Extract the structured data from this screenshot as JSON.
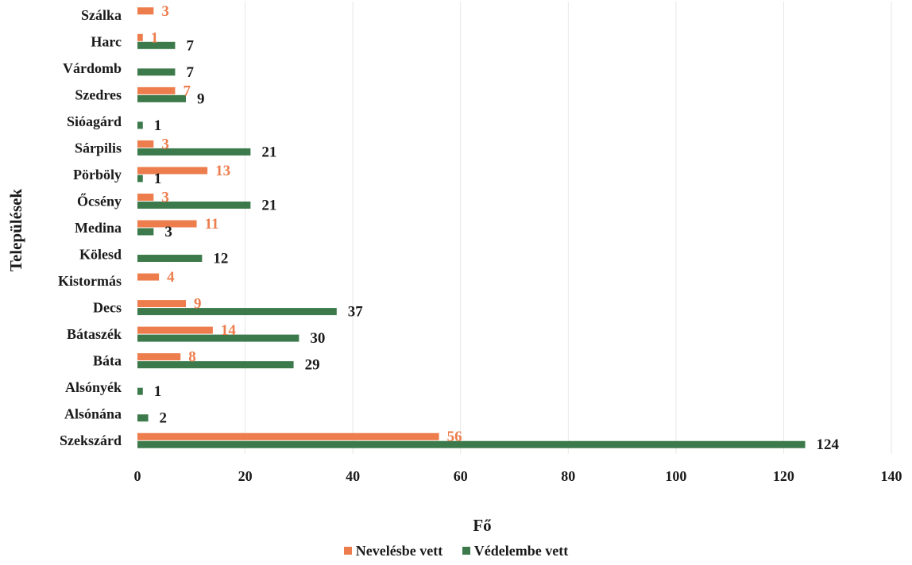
{
  "chart_data": {
    "type": "bar",
    "orientation": "horizontal",
    "categories": [
      "Szekszárd",
      "Alsónána",
      "Alsónyék",
      "Báta",
      "Bátaszék",
      "Decs",
      "Kistormás",
      "Kölesd",
      "Medina",
      "Őcsény",
      "Pörböly",
      "Sárpilis",
      "Sióagárd",
      "Szedres",
      "Várdomb",
      "Harc",
      "Szálka"
    ],
    "series": [
      {
        "name": "Nevelésbe vett",
        "color": "#ed7d4d",
        "values": [
          56,
          null,
          null,
          8,
          14,
          9,
          4,
          null,
          11,
          3,
          13,
          3,
          null,
          7,
          null,
          1,
          3
        ]
      },
      {
        "name": "Védelembe vett",
        "color": "#3c7a4c",
        "values": [
          124,
          2,
          1,
          29,
          30,
          37,
          null,
          12,
          3,
          21,
          1,
          21,
          1,
          9,
          7,
          7,
          null
        ]
      }
    ],
    "xlabel": "Fő",
    "ylabel": "Települések",
    "xlim": [
      0,
      140
    ],
    "xticks": [
      0,
      20,
      40,
      60,
      80,
      100,
      120,
      140
    ],
    "legend_position": "bottom",
    "grid": true
  }
}
